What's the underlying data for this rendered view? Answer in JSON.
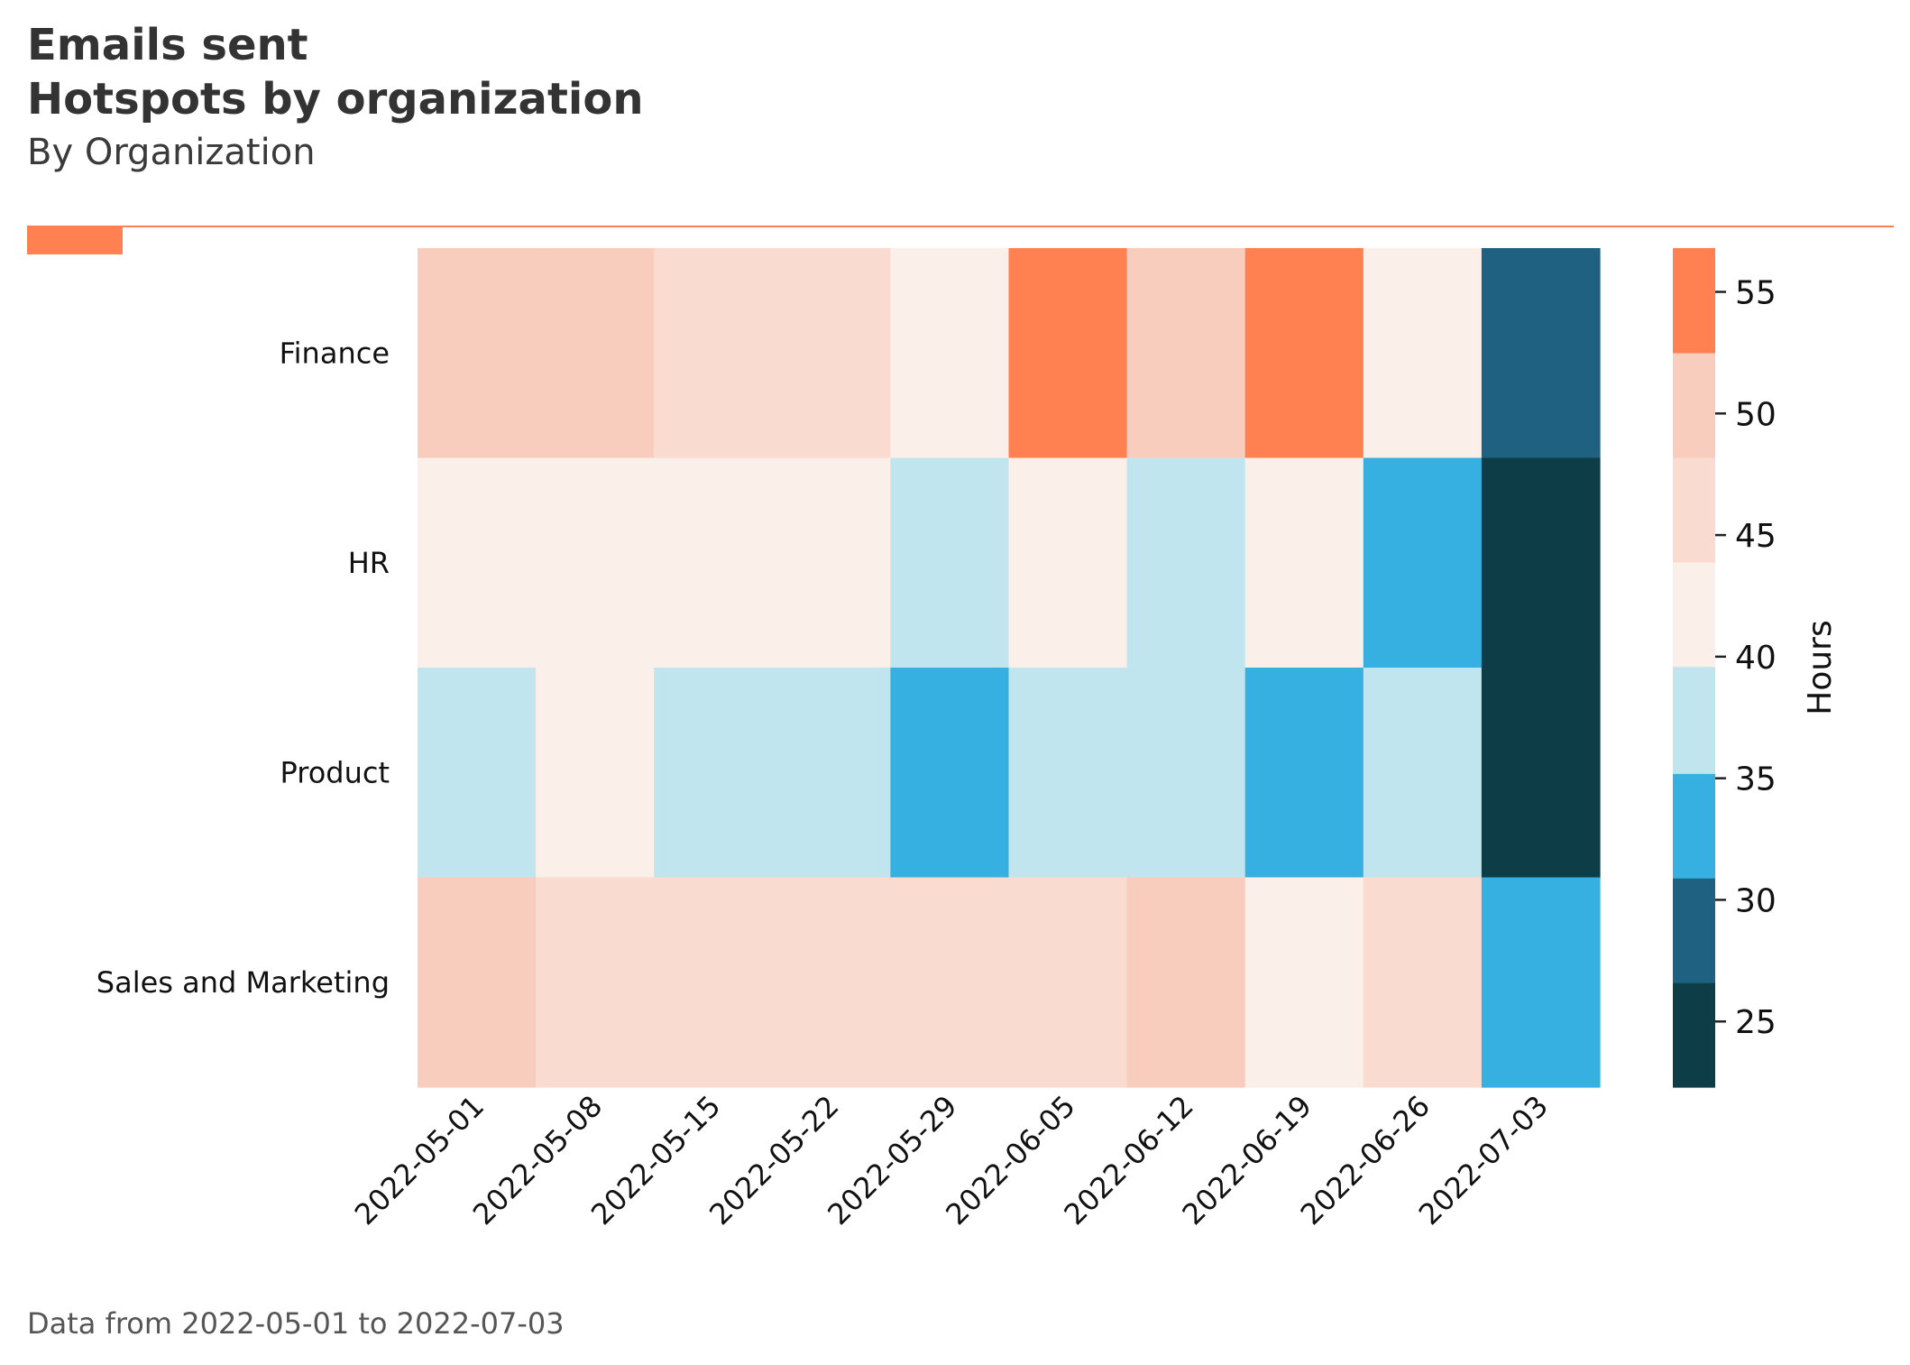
{
  "title_lines": [
    "Emails sent",
    "Hotspots by organization"
  ],
  "subtitle": "By Organization",
  "footer": "Data from 2022-05-01 to 2022-07-03",
  "colors": {
    "accent": "#FF8050",
    "title": "#333333",
    "footer": "#555555"
  },
  "chart_data": {
    "type": "heatmap",
    "x": [
      "2022-05-01",
      "2022-05-08",
      "2022-05-15",
      "2022-05-22",
      "2022-05-29",
      "2022-06-05",
      "2022-06-12",
      "2022-06-19",
      "2022-06-26",
      "2022-07-03"
    ],
    "y": [
      "Finance",
      "HR",
      "Product",
      "Sales and Marketing"
    ],
    "values": [
      [
        50,
        50,
        46,
        46,
        42,
        55,
        50,
        55,
        42,
        29
      ],
      [
        42,
        42,
        42,
        42,
        38,
        42,
        38,
        42,
        33,
        24
      ],
      [
        38,
        42,
        38,
        38,
        33,
        38,
        38,
        33,
        38,
        24
      ],
      [
        50,
        46,
        46,
        46,
        46,
        46,
        50,
        42,
        46,
        33
      ]
    ],
    "colorbar": {
      "label": "Hours",
      "range": [
        22.3,
        56.8
      ],
      "ticks": [
        25,
        30,
        35,
        40,
        45,
        50,
        55
      ],
      "bins": [
        {
          "from": 22.3,
          "to": 26.6,
          "color": "#0D3D47"
        },
        {
          "from": 26.6,
          "to": 30.9,
          "color": "#1E6180"
        },
        {
          "from": 30.9,
          "to": 35.2,
          "color": "#36B0E1"
        },
        {
          "from": 35.2,
          "to": 39.6,
          "color": "#C0E5EE"
        },
        {
          "from": 39.6,
          "to": 43.9,
          "color": "#FBEFEA"
        },
        {
          "from": 43.9,
          "to": 48.2,
          "color": "#FADBD0"
        },
        {
          "from": 48.2,
          "to": 52.5,
          "color": "#F9CDBD"
        },
        {
          "from": 52.5,
          "to": 56.8,
          "color": "#FF8050"
        }
      ]
    }
  }
}
